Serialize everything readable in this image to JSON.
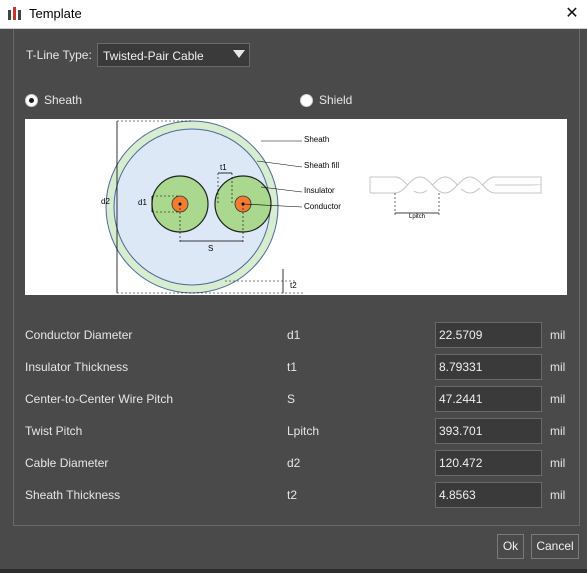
{
  "window": {
    "title": "Template",
    "close_glyph": "✕"
  },
  "tline": {
    "label": "T-Line Type:",
    "value": "Twisted-Pair Cable"
  },
  "radios": [
    {
      "label": "Sheath",
      "checked": true
    },
    {
      "label": "Shield",
      "checked": false
    }
  ],
  "diagram": {
    "labels": {
      "sheath": "Sheath",
      "sheath_fill": "Sheath fill",
      "insulator": "Insulator",
      "conductor": "Conductor",
      "t1": "t1",
      "d1": "d1",
      "d2": "d2",
      "s": "S",
      "t2": "t2",
      "lpitch": "Lpitch"
    },
    "colors": {
      "sheath": "#d8ecd0",
      "sheath_fill": "#dce8f6",
      "insulator": "#a9d88e",
      "conductor": "#f07e2e"
    }
  },
  "params": [
    {
      "name": "Conductor Diameter",
      "symbol": "d1",
      "value": "22.5709",
      "unit": "mil"
    },
    {
      "name": "Insulator Thickness",
      "symbol": "t1",
      "value": "8.79331",
      "unit": "mil"
    },
    {
      "name": "Center-to-Center Wire Pitch",
      "symbol": "S",
      "value": "47.2441",
      "unit": "mil"
    },
    {
      "name": "Twist Pitch",
      "symbol": "Lpitch",
      "value": "393.701",
      "unit": "mil"
    },
    {
      "name": "Cable Diameter",
      "symbol": "d2",
      "value": "120.472",
      "unit": "mil"
    },
    {
      "name": "Sheath Thickness",
      "symbol": "t2",
      "value": "4.8563",
      "unit": "mil"
    }
  ],
  "buttons": {
    "ok": "Ok",
    "cancel": "Cancel"
  }
}
